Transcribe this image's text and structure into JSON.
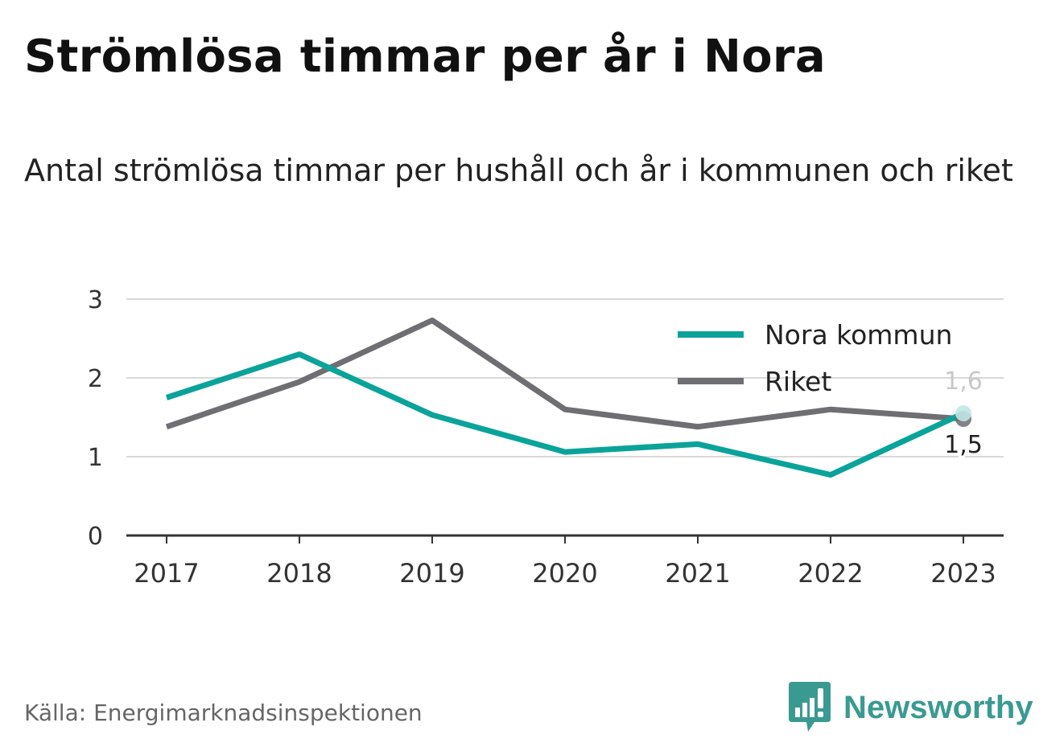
{
  "header": {
    "title": "Strömlösa timmar per år i Nora",
    "subtitle": "Antal strömlösa timmar per hushåll och år i kommunen och riket"
  },
  "footer": {
    "source": "Källa: Energimarknadsinspektionen",
    "brand": "Newsworthy",
    "brand_icon": "newsworthy-logo-icon"
  },
  "colors": {
    "nora": "#0aa39a",
    "riket": "#6e6e73",
    "grid": "#d9d9d9",
    "axis": "#333333",
    "brand": "#3a9a92"
  },
  "chart_data": {
    "type": "line",
    "x": [
      "2017",
      "2018",
      "2019",
      "2020",
      "2021",
      "2022",
      "2023"
    ],
    "ylim": [
      0,
      3
    ],
    "yticks": [
      "0",
      "1",
      "2",
      "3"
    ],
    "grid": true,
    "legend": "top-right",
    "series": [
      {
        "name": "Nora kommun",
        "values": [
          1.75,
          2.3,
          1.53,
          1.06,
          1.16,
          0.77,
          1.55
        ]
      },
      {
        "name": "Riket",
        "values": [
          1.38,
          1.95,
          2.73,
          1.6,
          1.38,
          1.6,
          1.48
        ]
      }
    ],
    "end_labels": [
      "1,6",
      "1,5"
    ]
  }
}
